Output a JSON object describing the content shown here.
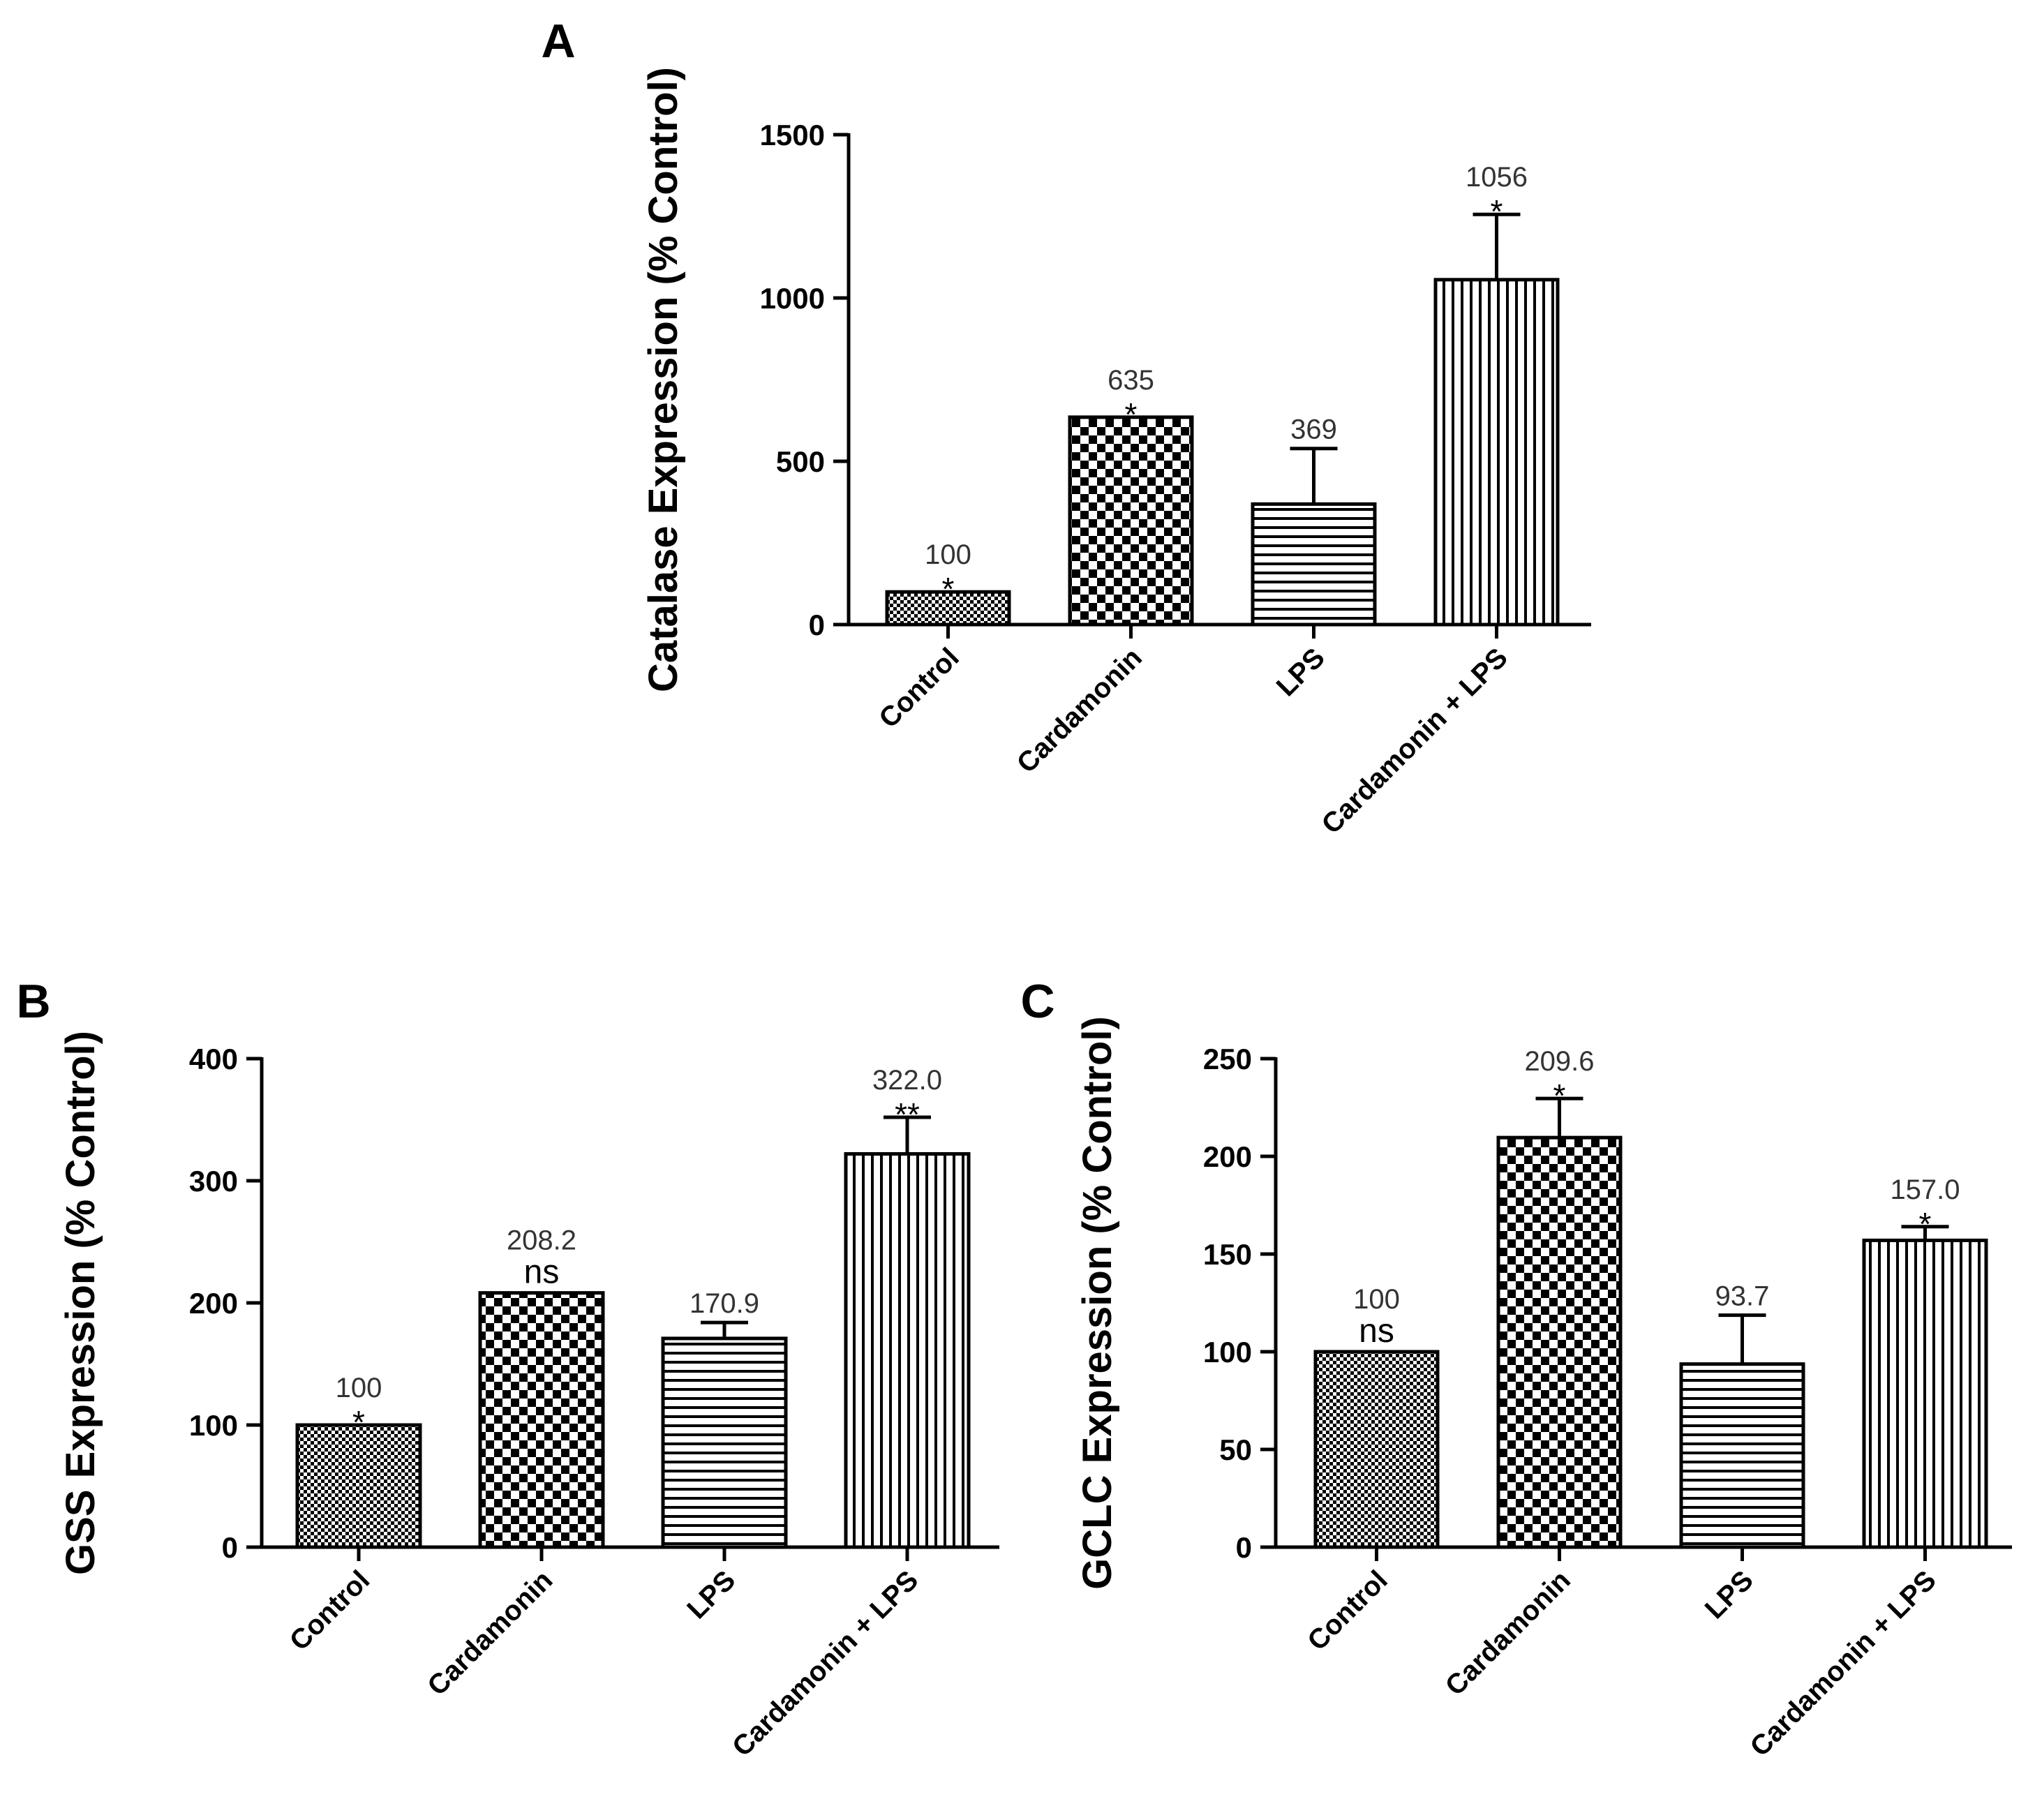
{
  "panels": {
    "a": {
      "letter": "A"
    },
    "b": {
      "letter": "B"
    },
    "c": {
      "letter": "C"
    }
  },
  "colors": {
    "ink": "#000000",
    "annotation": "#333333",
    "background": "#ffffff"
  },
  "chart_data": [
    {
      "type": "bar",
      "panel": "A",
      "ylabel": "Catalase Expression (% Control)",
      "categories": [
        "Control",
        "Cardamonin",
        "LPS",
        "Cardamonin + LPS"
      ],
      "values": [
        100,
        635,
        369,
        1056
      ],
      "errors": [
        0,
        0,
        170,
        200
      ],
      "value_labels": [
        "100",
        "635",
        "369",
        "1056"
      ],
      "significance": [
        "*",
        "*",
        "",
        "*"
      ],
      "patterns": [
        "fine-check",
        "checker",
        "horizontal-lines",
        "vertical-lines"
      ],
      "ylim": [
        0,
        1500
      ],
      "yticks": [
        0,
        500,
        1000,
        1500
      ],
      "ytick_labels": [
        "0",
        "500",
        "1000",
        "1500"
      ]
    },
    {
      "type": "bar",
      "panel": "B",
      "ylabel": "GSS Expression (% Control)",
      "categories": [
        "Control",
        "Cardamonin",
        "LPS",
        "Cardamonin + LPS"
      ],
      "values": [
        100,
        208.2,
        170.9,
        322.0
      ],
      "errors": [
        0,
        0,
        13,
        30
      ],
      "value_labels": [
        "100",
        "208.2",
        "170.9",
        "322.0"
      ],
      "significance": [
        "*",
        "ns",
        "",
        "**"
      ],
      "patterns": [
        "fine-check",
        "checker",
        "horizontal-lines",
        "vertical-lines"
      ],
      "ylim": [
        0,
        400
      ],
      "yticks": [
        0,
        100,
        200,
        300,
        400
      ],
      "ytick_labels": [
        "0",
        "100",
        "200",
        "300",
        "400"
      ]
    },
    {
      "type": "bar",
      "panel": "C",
      "ylabel": "GCLC Expression (% Control)",
      "categories": [
        "Control",
        "Cardamonin",
        "LPS",
        "Cardamonin + LPS"
      ],
      "values": [
        100,
        209.6,
        93.7,
        157.0
      ],
      "errors": [
        0,
        20,
        25,
        7
      ],
      "value_labels": [
        "100",
        "209.6",
        "93.7",
        "157.0"
      ],
      "significance": [
        "ns",
        "*",
        "",
        "*"
      ],
      "patterns": [
        "fine-check",
        "checker",
        "horizontal-lines",
        "vertical-lines"
      ],
      "ylim": [
        0,
        250
      ],
      "yticks": [
        0,
        50,
        100,
        150,
        200,
        250
      ],
      "ytick_labels": [
        "0",
        "50",
        "100",
        "150",
        "200",
        "250"
      ]
    }
  ]
}
